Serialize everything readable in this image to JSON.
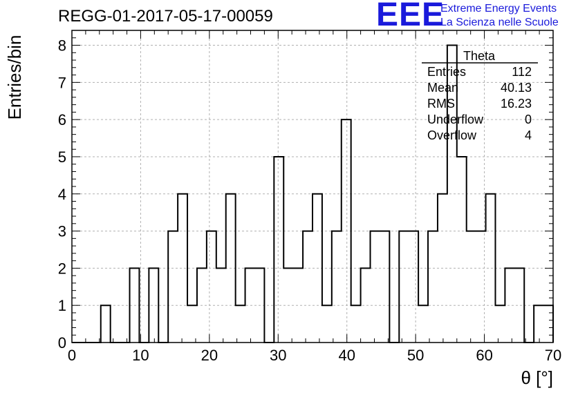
{
  "header": {
    "title": "REGG-01-2017-05-17-00059",
    "logo_text": "EEE",
    "logo_line1": "Extreme Energy Events",
    "logo_line2": "La Scienza nelle Scuole"
  },
  "stats_box": {
    "name": "Theta",
    "rows": [
      {
        "label": "Entries",
        "value": "112"
      },
      {
        "label": "Mean",
        "value": "40.13"
      },
      {
        "label": "RMS",
        "value": "16.23"
      },
      {
        "label": "Underflow",
        "value": "0"
      },
      {
        "label": "Overflow",
        "value": "4"
      }
    ]
  },
  "chart_data": {
    "type": "bar",
    "histogram": true,
    "title": "REGG-01-2017-05-17-00059",
    "xlabel": "θ [°]",
    "ylabel": "Entries/bin",
    "xlim": [
      0,
      70
    ],
    "ylim": [
      0,
      8.4
    ],
    "bin_width": 1.4,
    "bin_edges_start": 0,
    "values": [
      0,
      0,
      0,
      1,
      0,
      0,
      2,
      0,
      2,
      0,
      3,
      4,
      1,
      2,
      3,
      2,
      4,
      1,
      2,
      2,
      0,
      5,
      2,
      2,
      3,
      4,
      1,
      3,
      6,
      1,
      2,
      3,
      3,
      0,
      3,
      3,
      1,
      3,
      4,
      8,
      5,
      3,
      3,
      4,
      1,
      2,
      2,
      0,
      1,
      1
    ],
    "xticks": [
      0,
      10,
      20,
      30,
      40,
      50,
      60,
      70
    ],
    "yticks": [
      0,
      1,
      2,
      3,
      4,
      5,
      6,
      7,
      8
    ],
    "grid": true,
    "line_color": "#000000",
    "grid_color": "#b0b0b0",
    "logo_color": "#1a1adb"
  }
}
